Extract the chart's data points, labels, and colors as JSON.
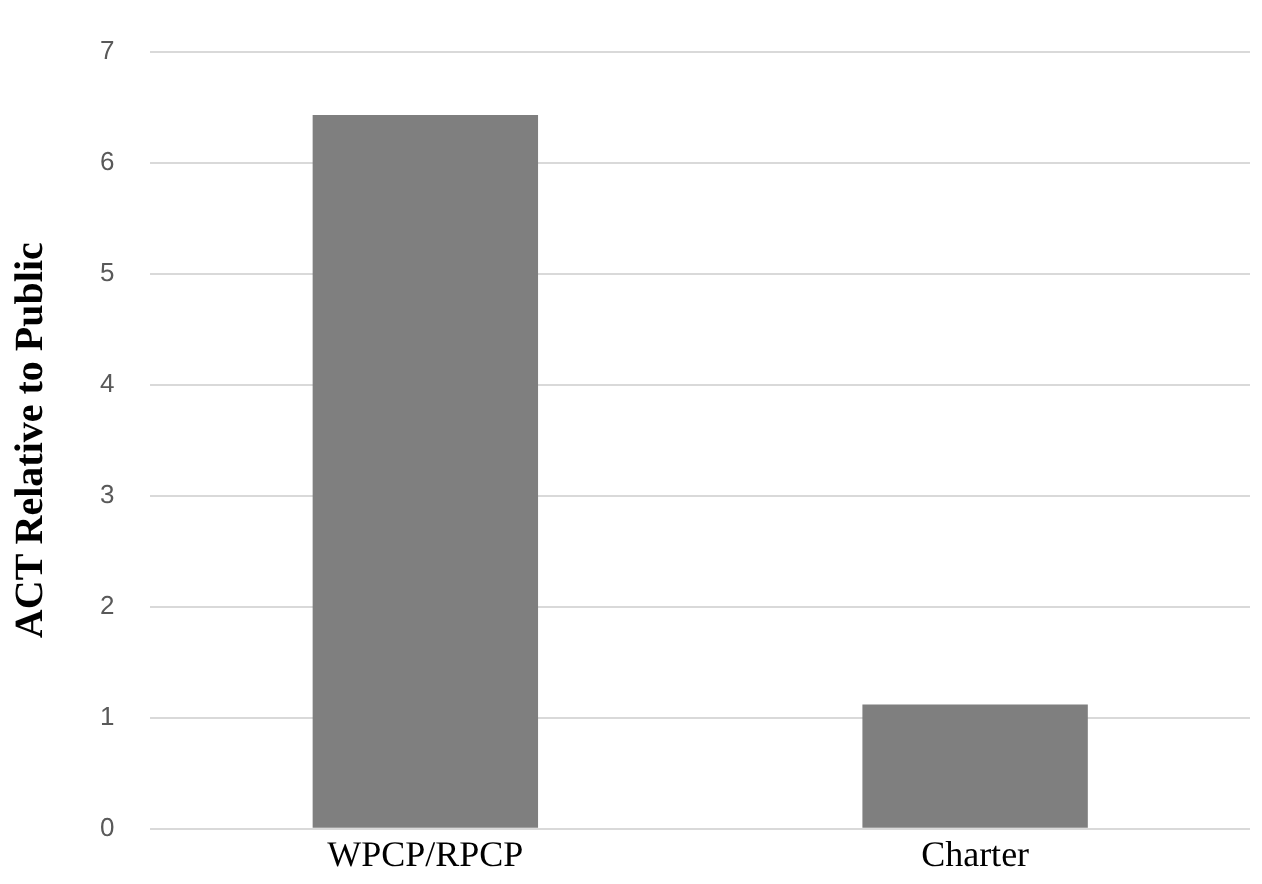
{
  "chart_data": {
    "type": "bar",
    "ylabel": "ACT Relative to Public",
    "categories": [
      "WPCP/RPCP",
      "Charter"
    ],
    "values": [
      6.43,
      1.12
    ],
    "color": "#7f7f7f",
    "ylim": [
      0,
      7
    ],
    "yticks": [
      0,
      1,
      2,
      3,
      4,
      5,
      6,
      7
    ],
    "grid": "y",
    "legend": false
  }
}
